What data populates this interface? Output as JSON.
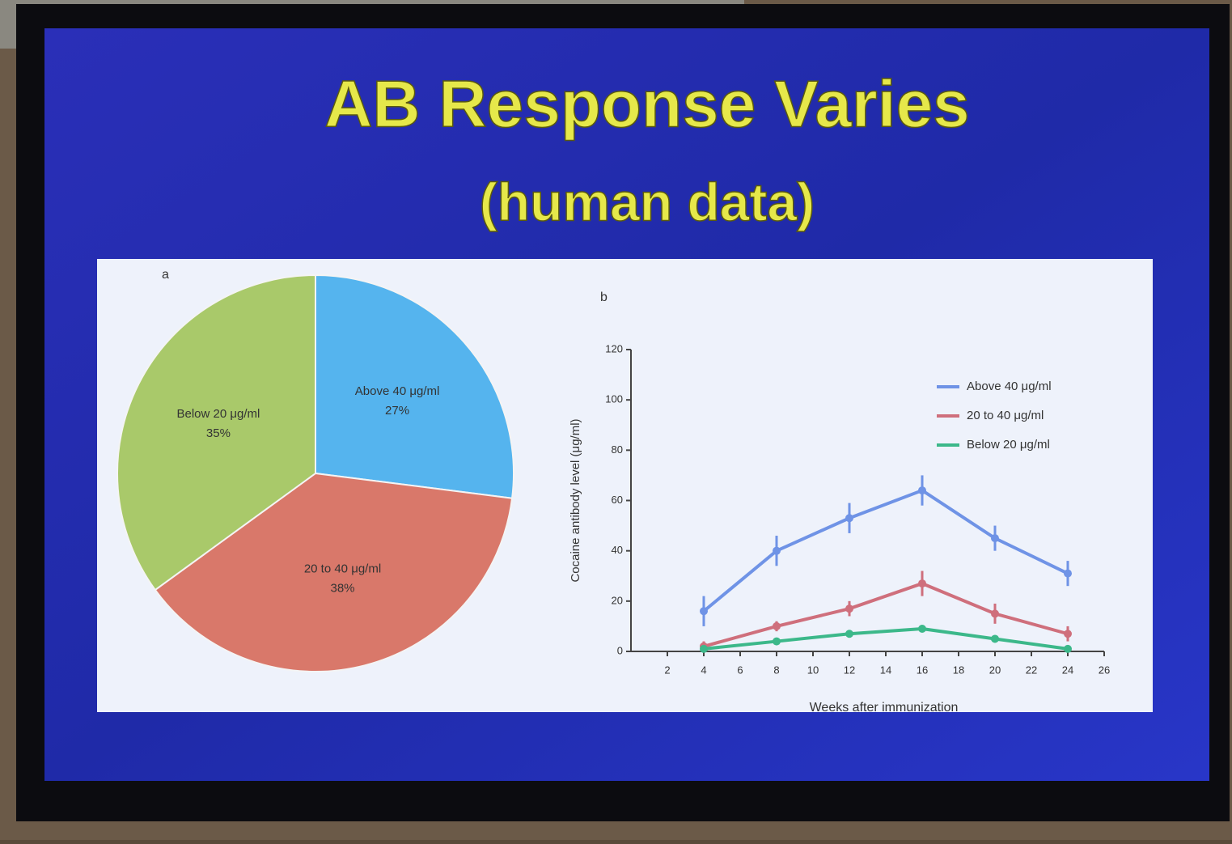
{
  "slide": {
    "title": "AB Response Varies",
    "subtitle": "(human data)"
  },
  "chart_data": [
    {
      "type": "pie",
      "panel_label": "a",
      "categories": [
        "Above 40 μg/ml",
        "20 to 40 μg/ml",
        "Below 20 μg/ml"
      ],
      "values": [
        27,
        38,
        35
      ],
      "value_labels": [
        "27%",
        "38%",
        "35%"
      ],
      "colors": [
        "#55b4ee",
        "#d9786a",
        "#a9c96a"
      ]
    },
    {
      "type": "line",
      "panel_label": "b",
      "y_label": "Cocaine antibody level (μg/ml)",
      "x_label": "Weeks after immunization",
      "x": [
        4,
        8,
        12,
        16,
        20,
        24
      ],
      "series": [
        {
          "name": "Above 40 μg/ml",
          "color": "#6f93e6",
          "values": [
            16,
            40,
            53,
            64,
            45,
            31
          ],
          "errors": [
            6,
            6,
            6,
            6,
            5,
            5
          ]
        },
        {
          "name": "20 to 40 μg/ml",
          "color": "#cf6f7c",
          "values": [
            2,
            10,
            17,
            27,
            15,
            7
          ],
          "errors": [
            2,
            2,
            3,
            5,
            4,
            3
          ]
        },
        {
          "name": "Below 20 μg/ml",
          "color": "#3cb88a",
          "values": [
            1,
            4,
            7,
            9,
            5,
            1
          ]
        }
      ],
      "xlim": [
        0,
        26
      ],
      "xticks": [
        2,
        4,
        6,
        8,
        10,
        12,
        14,
        16,
        18,
        20,
        22,
        24,
        26
      ],
      "ylim": [
        0,
        120
      ],
      "yticks": [
        0,
        20,
        40,
        60,
        80,
        100,
        120
      ],
      "legend": "upper right"
    }
  ]
}
